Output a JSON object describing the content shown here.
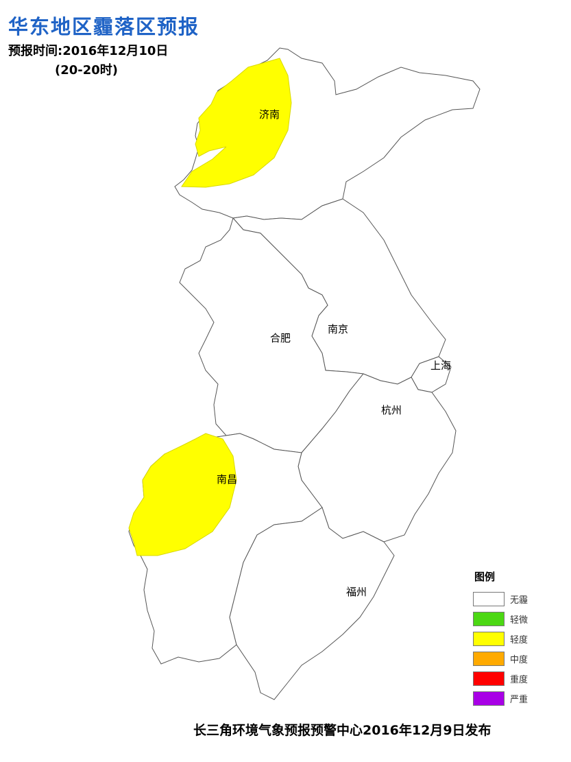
{
  "header": {
    "title": "华东地区霾落区预报",
    "forecast_time": "预报时间:2016年12月10日",
    "forecast_range": "(20-20时)"
  },
  "map": {
    "cities": [
      "济南",
      "合肥",
      "南京",
      "上海",
      "杭州",
      "南昌",
      "福州"
    ],
    "haze_zones": [
      {
        "city": "济南",
        "level": "轻度"
      },
      {
        "city": "南昌",
        "level": "轻度"
      }
    ]
  },
  "legend": {
    "title": "图例",
    "items": [
      {
        "label": "无霾",
        "color": "#ffffff"
      },
      {
        "label": "轻微",
        "color": "#4cd814"
      },
      {
        "label": "轻度",
        "color": "#ffff00"
      },
      {
        "label": "中度",
        "color": "#ffaa00"
      },
      {
        "label": "重度",
        "color": "#ff0000"
      },
      {
        "label": "严重",
        "color": "#a800e6"
      }
    ]
  },
  "footer": {
    "issuer": "长三角环境气象预报预警中心2016年12月9日发布"
  }
}
